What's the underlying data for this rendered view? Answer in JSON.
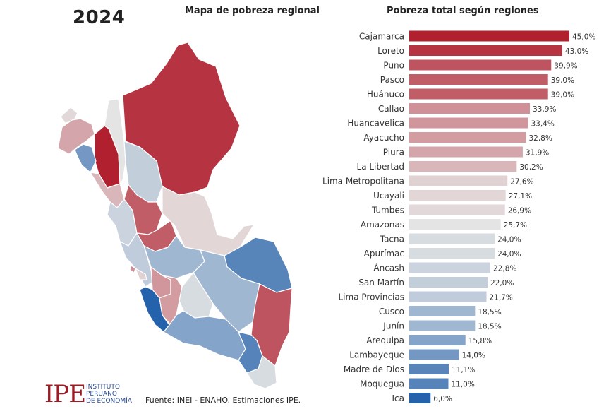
{
  "header": {
    "year": "2024",
    "map_title": "Mapa de pobreza regional",
    "chart_title": "Pobreza total según regiones"
  },
  "footer": {
    "logo_mark": "IPE",
    "logo_line1": "INSTITUTO",
    "logo_line2": "PERUANO",
    "logo_line3": "DE ECONOMÍA",
    "source": "Fuente: INEI - ENAHO. Estimaciones IPE."
  },
  "colors": {
    "high": "#b0202f",
    "mid": "#e6e6e6",
    "low": "#2462ab"
  },
  "chart_data": {
    "type": "bar",
    "orientation": "horizontal",
    "title": "Pobreza total según regiones",
    "categories": [
      "Cajamarca",
      "Loreto",
      "Puno",
      "Pasco",
      "Huánuco",
      "Callao",
      "Huancavelica",
      "Ayacucho",
      "Piura",
      "La Libertad",
      "Lima Metropolitana",
      "Ucayali",
      "Tumbes",
      "Amazonas",
      "Tacna",
      "Apurímac",
      "Áncash",
      "San Martín",
      "Lima Provincias",
      "Cusco",
      "Junín",
      "Arequipa",
      "Lambayeque",
      "Madre de Dios",
      "Moquegua",
      "Ica"
    ],
    "values": [
      45.0,
      43.0,
      39.9,
      39.0,
      39.0,
      33.9,
      33.4,
      32.8,
      31.9,
      30.2,
      27.6,
      27.1,
      26.9,
      25.7,
      24.0,
      24.0,
      22.8,
      22.0,
      21.7,
      18.5,
      18.5,
      15.8,
      14.0,
      11.1,
      11.0,
      6.0
    ],
    "value_labels": [
      "45,0%",
      "43,0%",
      "39,9%",
      "39,0%",
      "39,0%",
      "33,9%",
      "33,4%",
      "32,8%",
      "31,9%",
      "30,2%",
      "27,6%",
      "27,1%",
      "26,9%",
      "25,7%",
      "24,0%",
      "24,0%",
      "22,8%",
      "22,0%",
      "21,7%",
      "18,5%",
      "18,5%",
      "15,8%",
      "14,0%",
      "11,1%",
      "11,0%",
      "6,0%"
    ],
    "xlim": [
      0,
      45
    ],
    "grid": false,
    "legend": "none"
  },
  "map_regions": [
    {
      "name": "Loreto",
      "value": 43.0
    },
    {
      "name": "Cajamarca",
      "value": 45.0
    },
    {
      "name": "Amazonas",
      "value": 25.7
    },
    {
      "name": "Tumbes",
      "value": 26.9
    },
    {
      "name": "Piura",
      "value": 31.9
    },
    {
      "name": "Lambayeque",
      "value": 14.0
    },
    {
      "name": "La Libertad",
      "value": 30.2
    },
    {
      "name": "San Martín",
      "value": 22.0
    },
    {
      "name": "Áncash",
      "value": 22.8
    },
    {
      "name": "Huánuco",
      "value": 39.0
    },
    {
      "name": "Pasco",
      "value": 39.0
    },
    {
      "name": "Ucayali",
      "value": 27.1
    },
    {
      "name": "Lima Provincias",
      "value": 21.7
    },
    {
      "name": "Lima Metropolitana",
      "value": 27.6
    },
    {
      "name": "Callao",
      "value": 33.9
    },
    {
      "name": "Junín",
      "value": 18.5
    },
    {
      "name": "Madre de Dios",
      "value": 11.1
    },
    {
      "name": "Cusco",
      "value": 18.5
    },
    {
      "name": "Huancavelica",
      "value": 33.4
    },
    {
      "name": "Ica",
      "value": 6.0
    },
    {
      "name": "Ayacucho",
      "value": 32.8
    },
    {
      "name": "Apurímac",
      "value": 24.0
    },
    {
      "name": "Arequipa",
      "value": 15.8
    },
    {
      "name": "Puno",
      "value": 39.9
    },
    {
      "name": "Moquegua",
      "value": 11.0
    },
    {
      "name": "Tacna",
      "value": 24.0
    }
  ]
}
